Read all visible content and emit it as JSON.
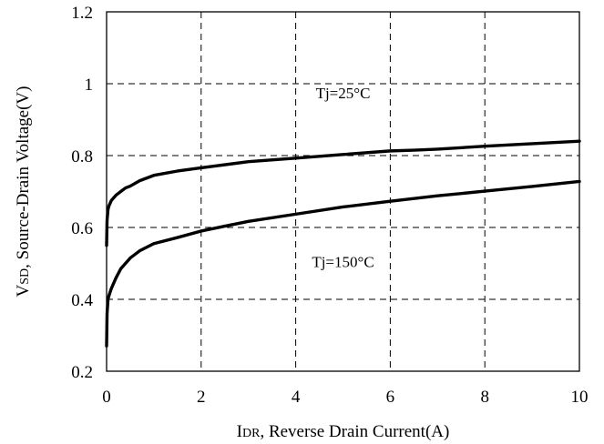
{
  "chart_data": {
    "type": "line",
    "title": "",
    "xlabel": {
      "main": "I",
      "sub": "DR",
      "rest": ", Reverse Drain Current(A)"
    },
    "ylabel": {
      "main": "V",
      "sub": "SD",
      "rest": ", Source-Drain Voltage(V)"
    },
    "xlim": [
      0,
      10
    ],
    "ylim": [
      0.2,
      1.2
    ],
    "xticks": [
      "0",
      "2",
      "4",
      "6",
      "8",
      "10"
    ],
    "yticks": [
      "0.2",
      "0.4",
      "0.6",
      "0.8",
      "1",
      "1.2"
    ],
    "grid": true,
    "grid_style": "dashed",
    "series": [
      {
        "id": "tj25",
        "color": "#000000",
        "x": [
          0,
          0.01,
          0.03,
          0.05,
          0.1,
          0.2,
          0.3,
          0.4,
          0.5,
          0.7,
          1,
          1.5,
          2,
          3,
          4,
          5,
          6,
          6.5,
          7,
          8,
          9,
          10
        ],
        "y": [
          0.55,
          0.62,
          0.65,
          0.66,
          0.675,
          0.69,
          0.7,
          0.71,
          0.715,
          0.73,
          0.745,
          0.757,
          0.766,
          0.783,
          0.793,
          0.803,
          0.813,
          0.815,
          0.818,
          0.826,
          0.833,
          0.84
        ]
      },
      {
        "id": "tj150",
        "color": "#000000",
        "x": [
          0,
          0.01,
          0.03,
          0.05,
          0.1,
          0.2,
          0.3,
          0.4,
          0.5,
          0.7,
          1,
          1.5,
          2,
          3,
          4,
          5,
          6,
          7,
          8,
          9,
          10
        ],
        "y": [
          0.27,
          0.36,
          0.4,
          0.41,
          0.43,
          0.46,
          0.485,
          0.5,
          0.515,
          0.535,
          0.555,
          0.572,
          0.59,
          0.617,
          0.637,
          0.657,
          0.673,
          0.688,
          0.701,
          0.714,
          0.728
        ]
      }
    ],
    "annotations": [
      {
        "text": "Tj=25°C",
        "x": 5.0,
        "y": 0.96
      },
      {
        "text": "Tj=150°C",
        "x": 5.0,
        "y": 0.49
      }
    ]
  }
}
